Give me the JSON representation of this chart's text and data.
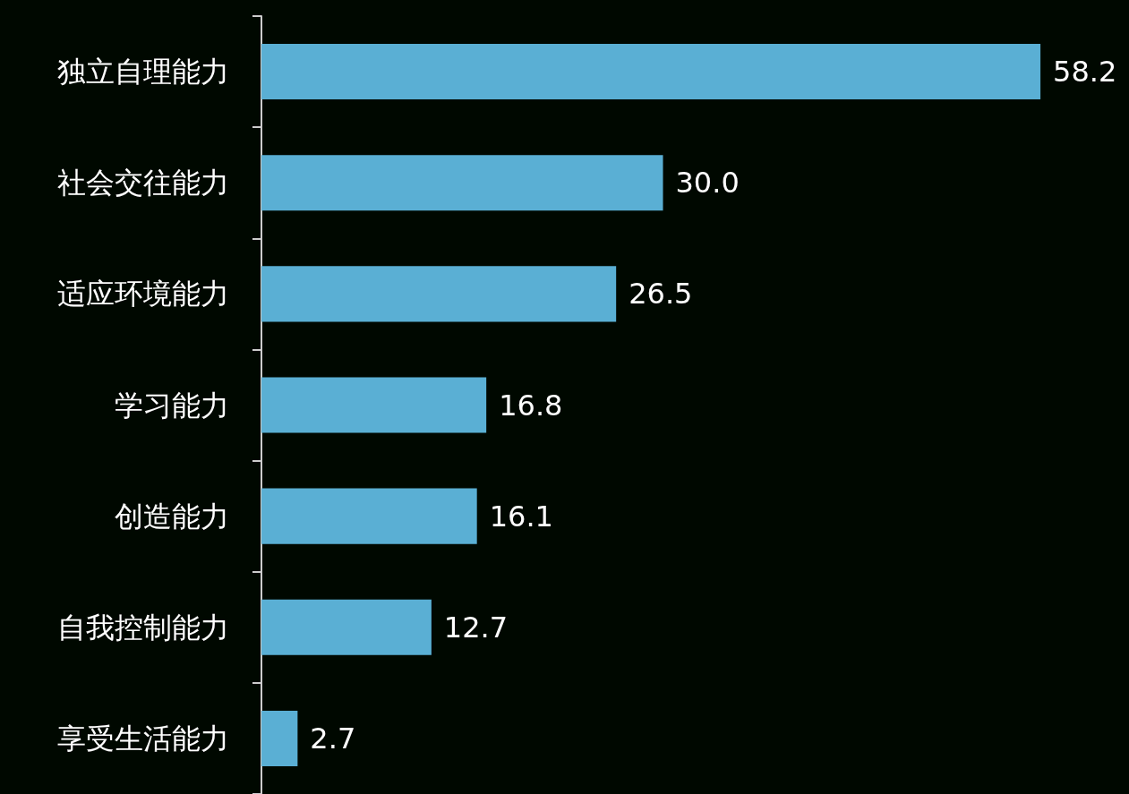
{
  "chart_data": {
    "type": "bar",
    "orientation": "horizontal",
    "categories": [
      "独立自理能力",
      "社会交往能力",
      "适应环境能力",
      "学习能力",
      "创造能力",
      "自我控制能力",
      "享受生活能力"
    ],
    "values": [
      58.2,
      30.0,
      26.5,
      16.8,
      16.1,
      12.7,
      2.7
    ],
    "value_labels": [
      "58.2",
      "30.0",
      "26.5",
      "16.8",
      "16.1",
      "12.7",
      "2.7"
    ],
    "color": "#5aafd4"
  }
}
